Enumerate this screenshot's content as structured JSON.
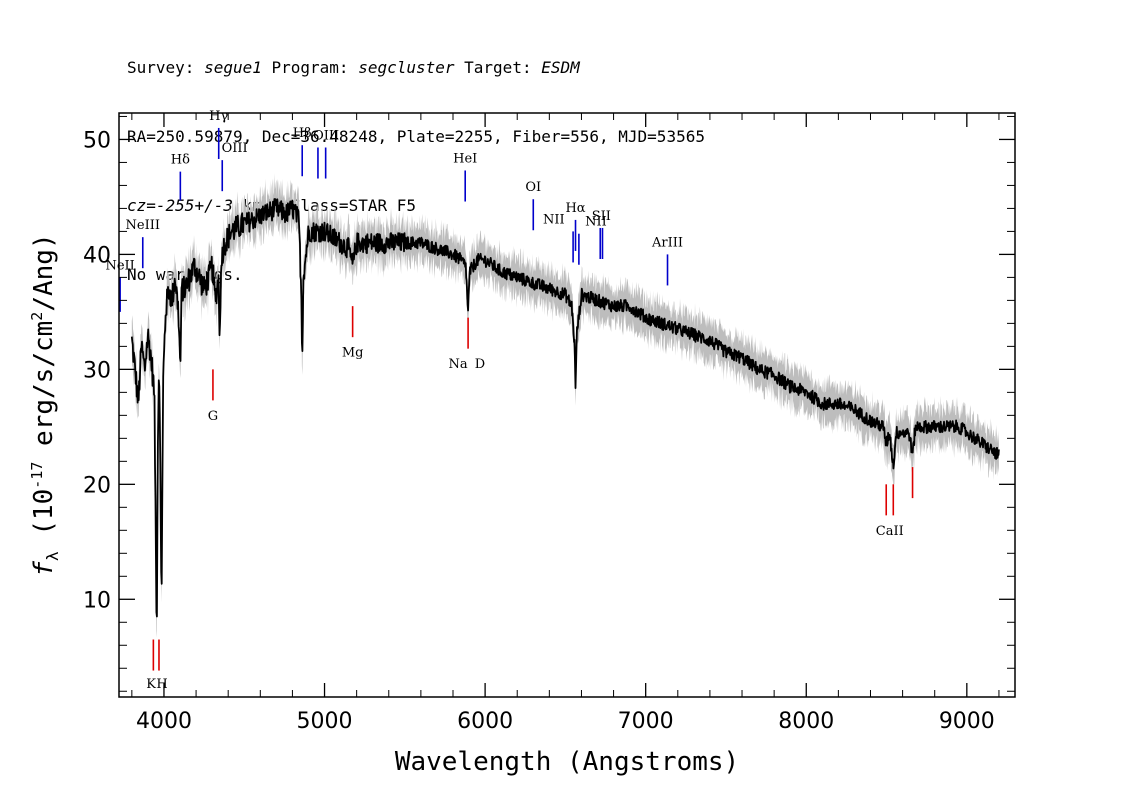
{
  "header": {
    "line1": {
      "survey_label": "Survey: ",
      "survey": "segue1",
      "program_label": " Program: ",
      "program": "segcluster",
      "target_label": " Target: ",
      "target": "ESDM"
    },
    "line2": "RA=250.59879, Dec=36.48248, Plate=2255, Fiber=556, MJD=53565",
    "line3": {
      "cz_label": "cz",
      "cz_eq": "=",
      "cz_value": "-255+/-3",
      "rest": " km/s Class=STAR F5"
    },
    "line4": "No warnings."
  },
  "colors": {
    "spectrum": "#000000",
    "error_band": "#bdbdbd",
    "emission_lines": "#0000cc",
    "absorption_lines": "#dd0000"
  },
  "chart_data": {
    "type": "line",
    "xlabel": "Wavelength (Angstroms)",
    "ylabel_main": "f",
    "ylabel_sub": "λ",
    "ylabel_rest1": " (10",
    "ylabel_exp": "-17",
    "ylabel_rest2": " erg/s/cm",
    "ylabel_exp2": "2",
    "ylabel_rest3": "/Ang)",
    "xlim": [
      3720,
      9300
    ],
    "ylim": [
      1.5,
      52.3
    ],
    "xticks": [
      4000,
      5000,
      6000,
      7000,
      8000,
      9000
    ],
    "yticks": [
      10,
      20,
      30,
      40,
      50
    ],
    "spectrum": {
      "x": [
        3800,
        3820,
        3840,
        3860,
        3880,
        3900,
        3920,
        3940,
        3955,
        3962,
        3970,
        3985,
        3995,
        4010,
        4030,
        4050,
        4070,
        4090,
        4102,
        4110,
        4130,
        4160,
        4190,
        4220,
        4250,
        4280,
        4300,
        4320,
        4340,
        4345,
        4360,
        4380,
        4420,
        4480,
        4550,
        4620,
        4700,
        4760,
        4800,
        4840,
        4855,
        4861,
        4868,
        4900,
        4950,
        5000,
        5050,
        5100,
        5150,
        5175,
        5200,
        5250,
        5300,
        5400,
        5500,
        5600,
        5700,
        5800,
        5850,
        5880,
        5893,
        5905,
        5950,
        6000,
        6100,
        6200,
        6300,
        6400,
        6500,
        6540,
        6558,
        6563,
        6570,
        6600,
        6700,
        6800,
        6900,
        7000,
        7100,
        7200,
        7300,
        7400,
        7500,
        7600,
        7700,
        7800,
        7900,
        8000,
        8100,
        8200,
        8300,
        8400,
        8480,
        8498,
        8520,
        8542,
        8560,
        8600,
        8640,
        8662,
        8680,
        8750,
        8850,
        8950,
        9050,
        9150,
        9200
      ],
      "y": [
        32.5,
        30,
        27,
        32,
        30,
        33,
        31,
        28,
        7,
        24,
        31,
        10,
        29,
        35,
        37,
        36,
        38,
        35,
        30,
        37,
        37,
        38,
        39,
        38,
        37,
        38,
        39,
        36,
        38,
        33,
        40,
        41,
        42,
        42.5,
        43,
        43.5,
        44,
        43.5,
        44,
        43,
        37,
        31,
        38,
        42,
        42,
        42,
        41.5,
        41,
        40.5,
        39,
        41,
        41,
        41,
        41,
        41,
        41,
        40.5,
        40,
        39.5,
        39,
        35,
        38.5,
        39.5,
        39.5,
        38.5,
        38,
        37.5,
        37,
        36.5,
        35.5,
        32,
        28,
        33,
        36.5,
        36,
        35.5,
        35.5,
        34.5,
        34,
        33.5,
        33,
        32.5,
        31.5,
        31,
        30,
        29.5,
        28.5,
        28,
        27,
        27,
        26.5,
        25.5,
        25,
        23.5,
        24.5,
        21.5,
        24.5,
        24.5,
        24.5,
        22.5,
        25,
        25,
        25,
        25,
        24,
        23,
        22.5
      ]
    },
    "lines": [
      {
        "label": "NeII",
        "x": 3727,
        "kind": "emission",
        "y_top": 38.0,
        "y_bot": 35.0
      },
      {
        "label": "NeIII",
        "x": 3868,
        "kind": "emission",
        "y_top": 41.5,
        "y_bot": 38.8
      },
      {
        "label": "Hδ",
        "x": 4102,
        "kind": "emission",
        "y_top": 47.2,
        "y_bot": 44.7
      },
      {
        "label": "Hγ",
        "x": 4341,
        "kind": "emission",
        "y_top": 51.0,
        "y_bot": 48.3
      },
      {
        "label": "OIII",
        "x": 4363,
        "kind": "emission",
        "y_top": 48.2,
        "y_bot": 45.5
      },
      {
        "label": "Hβ",
        "x": 4861,
        "kind": "emission",
        "y_top": 49.5,
        "y_bot": 46.8
      },
      {
        "label": "OIII",
        "x": 4959,
        "kind": "emission",
        "y_top": 49.3,
        "y_bot": 46.6
      },
      {
        "label": "OIII",
        "x": 5007,
        "kind": "emission",
        "y_top": 49.3,
        "y_bot": 46.6
      },
      {
        "label": "HeI",
        "x": 5876,
        "kind": "emission",
        "y_top": 47.3,
        "y_bot": 44.6
      },
      {
        "label": "OI",
        "x": 6300,
        "kind": "emission",
        "y_top": 44.8,
        "y_bot": 42.1
      },
      {
        "label": "NII",
        "x": 6548,
        "kind": "emission",
        "y_top": 42.0,
        "y_bot": 39.3
      },
      {
        "label": "Hα",
        "x": 6563,
        "kind": "emission",
        "y_top": 43.0,
        "y_bot": 40.3
      },
      {
        "label": "NII",
        "x": 6584,
        "kind": "emission",
        "y_top": 41.8,
        "y_bot": 39.1
      },
      {
        "label": "SII",
        "x": 6717,
        "kind": "emission",
        "y_top": 42.3,
        "y_bot": 39.6
      },
      {
        "label": "SII",
        "x": 6731,
        "kind": "emission",
        "y_top": 42.3,
        "y_bot": 39.6
      },
      {
        "label": "ArIII",
        "x": 7136,
        "kind": "emission",
        "y_top": 40.0,
        "y_bot": 37.3
      },
      {
        "label": "K",
        "x": 3934,
        "kind": "absorption",
        "y_top": 6.5,
        "y_bot": 3.8
      },
      {
        "label": "H",
        "x": 3969,
        "kind": "absorption",
        "y_top": 6.5,
        "y_bot": 3.8
      },
      {
        "label": "G",
        "x": 4305,
        "kind": "absorption",
        "y_top": 30.0,
        "y_bot": 27.3
      },
      {
        "label": "Mg",
        "x": 5175,
        "kind": "absorption",
        "y_top": 35.5,
        "y_bot": 32.8
      },
      {
        "label": "Na",
        "x": 5894,
        "kind": "absorption",
        "y_top": 34.5,
        "y_bot": 31.8
      },
      {
        "label": "D",
        "x": 5894,
        "kind": "label-only"
      },
      {
        "label": "CaII",
        "x": 8498,
        "kind": "absorption",
        "y_top": 20.0,
        "y_bot": 17.3
      },
      {
        "label": "CaII",
        "x": 8542,
        "kind": "absorption",
        "y_top": 20.0,
        "y_bot": 17.3
      },
      {
        "label": "CaII",
        "x": 8662,
        "kind": "absorption",
        "y_top": 21.5,
        "y_bot": 18.8
      }
    ],
    "line_label_positions": [
      {
        "text": "NeII",
        "x": 3727,
        "y": 38.7
      },
      {
        "text": "NeIII",
        "x": 3868,
        "y": 42.2
      },
      {
        "text": "Hδ",
        "x": 4102,
        "y": 47.9
      },
      {
        "text": "Hγ",
        "x": 4341,
        "y": 51.7
      },
      {
        "text": "OIII",
        "x": 4440,
        "y": 48.9
      },
      {
        "text": "Hβ",
        "x": 4861,
        "y": 50.2
      },
      {
        "text": "OIII",
        "x": 5010,
        "y": 50.0
      },
      {
        "text": "HeI",
        "x": 5876,
        "y": 48.0
      },
      {
        "text": "OI",
        "x": 6300,
        "y": 45.5
      },
      {
        "text": "NII",
        "x": 6428,
        "y": 42.7
      },
      {
        "text": "Hα",
        "x": 6563,
        "y": 43.7
      },
      {
        "text": "NII",
        "x": 6690,
        "y": 42.5
      },
      {
        "text": "SII",
        "x": 6724,
        "y": 43.0
      },
      {
        "text": "ArIII",
        "x": 7136,
        "y": 40.7
      },
      {
        "text": "K",
        "x": 3920,
        "y": 2.3
      },
      {
        "text": "H",
        "x": 3988,
        "y": 2.3
      },
      {
        "text": "G",
        "x": 4305,
        "y": 25.6
      },
      {
        "text": "Mg",
        "x": 5175,
        "y": 31.1
      },
      {
        "text": "Na",
        "x": 5832,
        "y": 30.1
      },
      {
        "text": "D",
        "x": 5968,
        "y": 30.1
      },
      {
        "text": "CaII",
        "x": 8520,
        "y": 15.6
      }
    ],
    "grid": false,
    "legend": "none"
  }
}
